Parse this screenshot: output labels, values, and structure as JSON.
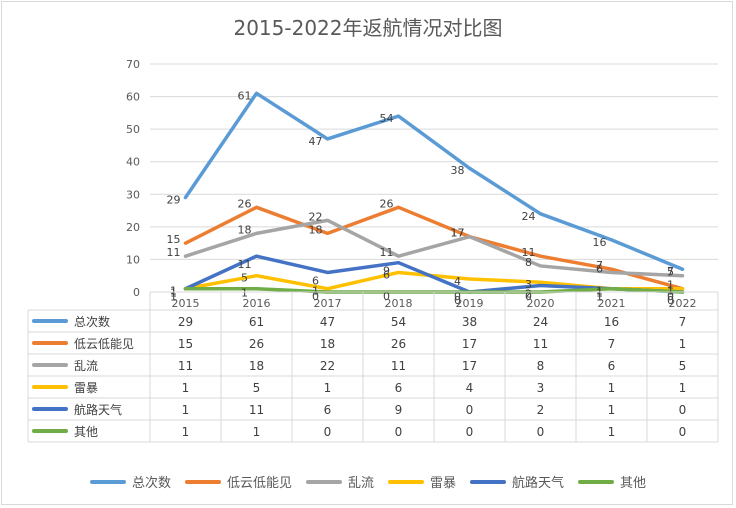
{
  "chart_data": {
    "type": "line",
    "title": "2015-2022年返航情况对比图",
    "categories": [
      "2015",
      "2016",
      "2017",
      "2018",
      "2019",
      "2020",
      "2021",
      "2022"
    ],
    "ylim": [
      0,
      70
    ],
    "yticks": [
      0,
      10,
      20,
      30,
      40,
      50,
      60,
      70
    ],
    "grid": true,
    "legend_position": "bottom",
    "data_table": true,
    "series": [
      {
        "name": "总次数",
        "color": "#5B9BD5",
        "values": [
          29,
          61,
          47,
          54,
          38,
          24,
          16,
          7
        ]
      },
      {
        "name": "低云低能见",
        "color": "#ED7D31",
        "values": [
          15,
          26,
          18,
          26,
          17,
          11,
          7,
          1
        ]
      },
      {
        "name": "乱流",
        "color": "#A5A5A5",
        "values": [
          11,
          18,
          22,
          11,
          17,
          8,
          6,
          5
        ]
      },
      {
        "name": "雷暴",
        "color": "#FFC000",
        "values": [
          1,
          5,
          1,
          6,
          4,
          3,
          1,
          1
        ]
      },
      {
        "name": "航路天气",
        "color": "#4472C4",
        "values": [
          1,
          11,
          6,
          9,
          0,
          2,
          1,
          0
        ]
      },
      {
        "name": "其他",
        "color": "#70AD47",
        "values": [
          1,
          1,
          0,
          0,
          0,
          0,
          1,
          0
        ]
      }
    ]
  }
}
